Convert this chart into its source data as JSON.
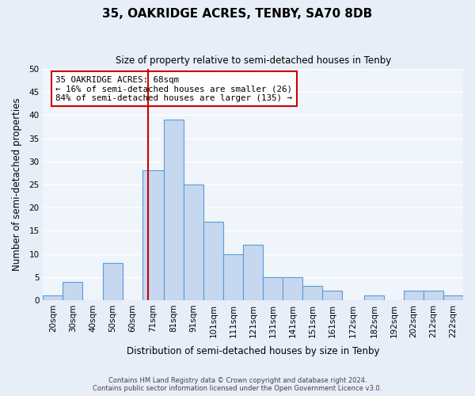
{
  "title": "35, OAKRIDGE ACRES, TENBY, SA70 8DB",
  "subtitle": "Size of property relative to semi-detached houses in Tenby",
  "xlabel": "Distribution of semi-detached houses by size in Tenby",
  "ylabel": "Number of semi-detached properties",
  "footer_lines": [
    "Contains HM Land Registry data © Crown copyright and database right 2024.",
    "Contains public sector information licensed under the Open Government Licence v3.0."
  ],
  "bin_labels": [
    "20sqm",
    "30sqm",
    "40sqm",
    "50sqm",
    "60sqm",
    "71sqm",
    "81sqm",
    "91sqm",
    "101sqm",
    "111sqm",
    "121sqm",
    "131sqm",
    "141sqm",
    "151sqm",
    "161sqm",
    "172sqm",
    "182sqm",
    "192sqm",
    "202sqm",
    "212sqm",
    "222sqm"
  ],
  "bin_edges": [
    15,
    25,
    35,
    45,
    55,
    65,
    76,
    86,
    96,
    106,
    116,
    126,
    136,
    146,
    156,
    166,
    177,
    187,
    197,
    207,
    217,
    227
  ],
  "counts": [
    1,
    4,
    0,
    8,
    0,
    28,
    39,
    25,
    17,
    10,
    12,
    5,
    5,
    3,
    2,
    0,
    1,
    0,
    2,
    2,
    1
  ],
  "bar_color": "#c5d8f0",
  "bar_edge_color": "#5a9bd4",
  "property_size": 68,
  "vline_color": "#cc0000",
  "annotation_title": "35 OAKRIDGE ACRES: 68sqm",
  "annotation_line1": "← 16% of semi-detached houses are smaller (26)",
  "annotation_line2": "84% of semi-detached houses are larger (135) →",
  "annotation_box_color": "#cc0000",
  "ylim": [
    0,
    50
  ],
  "yticks": [
    0,
    5,
    10,
    15,
    20,
    25,
    30,
    35,
    40,
    45,
    50
  ],
  "bg_color": "#e8eef8",
  "plot_bg_color": "#f0f4fb"
}
